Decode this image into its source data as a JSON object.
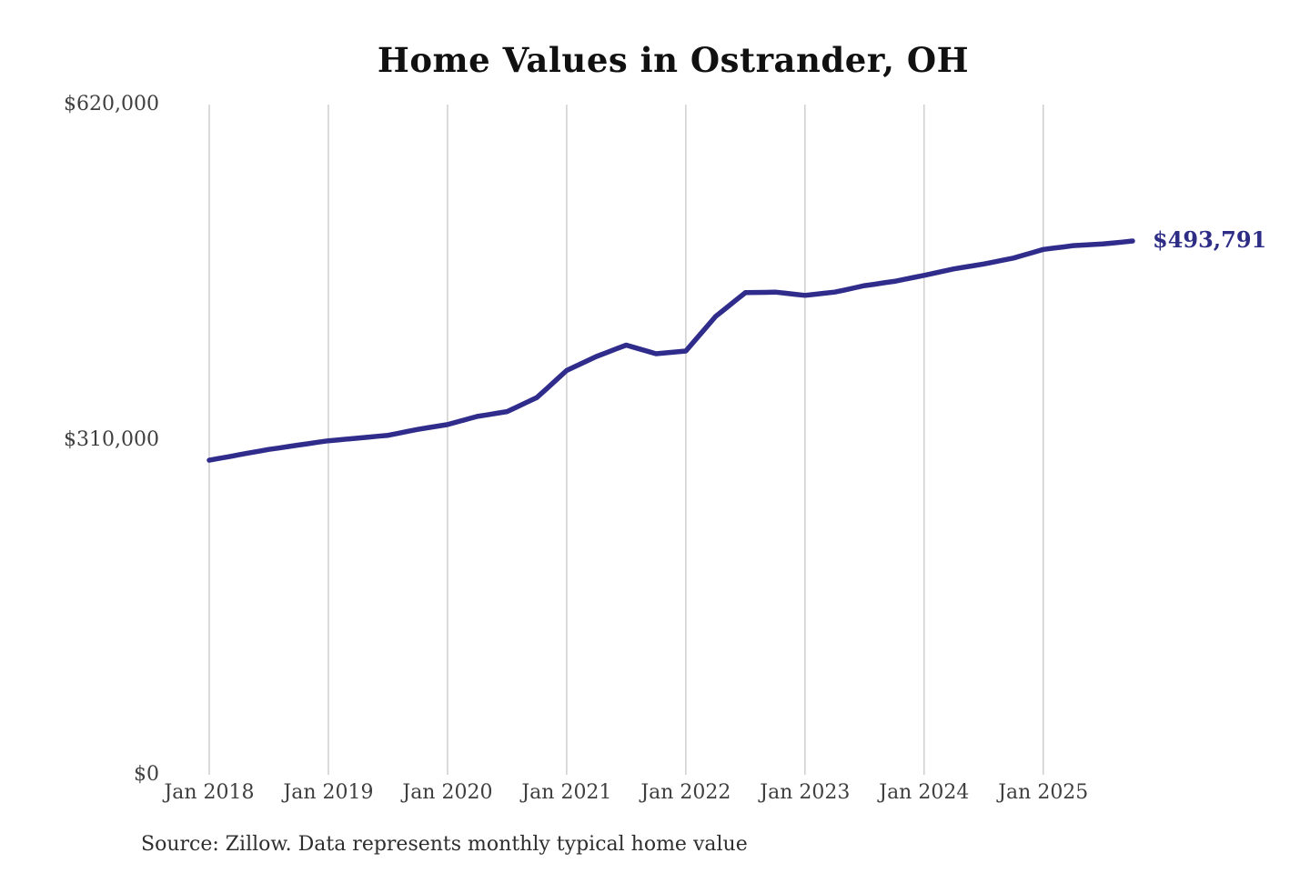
{
  "chart_data": {
    "type": "line",
    "title": "Home Values in Ostrander, OH",
    "source": "Source: Zillow. Data represents monthly typical home value",
    "end_label": "$493,791",
    "end_value": 493791,
    "series_name": "Typical home value",
    "frequency": "monthly",
    "start_month": "2018-01",
    "ylim": [
      0,
      620000
    ],
    "y_ticks": [
      {
        "label": "$0",
        "value": 0
      },
      {
        "label": "$310,000",
        "value": 310000
      },
      {
        "label": "$620,000",
        "value": 620000
      }
    ],
    "x_ticks": [
      {
        "label": "Jan 2018",
        "month_index": 0
      },
      {
        "label": "Jan 2019",
        "month_index": 12
      },
      {
        "label": "Jan 2020",
        "month_index": 24
      },
      {
        "label": "Jan 2021",
        "month_index": 36
      },
      {
        "label": "Jan 2022",
        "month_index": 48
      },
      {
        "label": "Jan 2023",
        "month_index": 60
      },
      {
        "label": "Jan 2024",
        "month_index": 72
      },
      {
        "label": "Jan 2025",
        "month_index": 84
      }
    ],
    "values": [
      291000,
      292700,
      294300,
      296000,
      297700,
      299300,
      301000,
      302300,
      303700,
      305000,
      306300,
      307700,
      309000,
      309800,
      310700,
      311500,
      312300,
      313200,
      314000,
      315800,
      317700,
      319500,
      321000,
      322500,
      324000,
      326500,
      329000,
      331500,
      333000,
      334500,
      336000,
      340300,
      344700,
      349000,
      357300,
      365700,
      374000,
      378300,
      382700,
      387000,
      390500,
      394000,
      397500,
      394800,
      392200,
      389500,
      390300,
      391200,
      392000,
      402700,
      413300,
      424000,
      431300,
      438700,
      446000,
      446200,
      446300,
      446500,
      445500,
      444500,
      443500,
      444500,
      445500,
      446500,
      448500,
      450500,
      452500,
      453800,
      455200,
      456500,
      458300,
      460200,
      462000,
      464000,
      466000,
      468000,
      469500,
      471000,
      472500,
      474300,
      476200,
      478000,
      480700,
      483300,
      486000,
      487200,
      488300,
      489500,
      490000,
      490500,
      491000,
      491900,
      492800,
      493791
    ],
    "colors": {
      "line": "#302c8c",
      "annotation": "#2d2d86",
      "gridline": "#cbcbcb",
      "axis_text": "#3f3f3f",
      "title_text": "#111111",
      "background": "#ffffff"
    }
  }
}
